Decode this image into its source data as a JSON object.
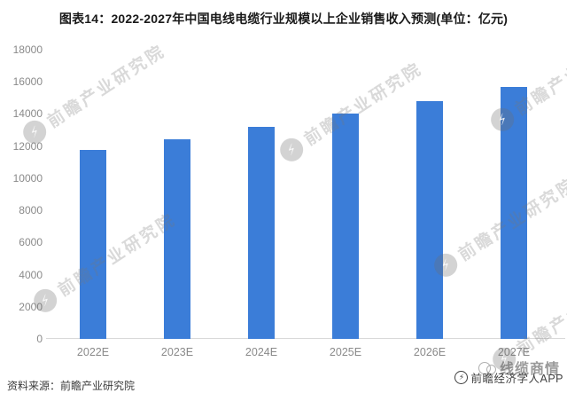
{
  "title": "图表14：2022-2027年中国电线电缆行业规模以上企业销售收入预测(单位：亿元)",
  "chart_data": {
    "type": "bar",
    "title": "2022-2027年中国电线电缆行业规模以上企业销售收入预测",
    "unit": "亿元",
    "categories": [
      "2022E",
      "2023E",
      "2024E",
      "2025E",
      "2026E",
      "2027E"
    ],
    "values": [
      11750,
      12400,
      13200,
      14000,
      14800,
      15700
    ],
    "xlabel": "",
    "ylabel": "",
    "ylim": [
      0,
      18000
    ],
    "yticks": [
      0,
      2000,
      4000,
      6000,
      8000,
      10000,
      12000,
      14000,
      16000,
      18000
    ],
    "grid": false,
    "legend": false,
    "bar_color": "#3B7DD8"
  },
  "watermark": {
    "text": "前瞻产业研究院",
    "logo_glyph": "⚡"
  },
  "footer": {
    "source_label": "资料来源：前瞻产业研究院",
    "brand_name": "线缆商情",
    "app_name": "前瞻经济学人APP",
    "app_logo_glyph": "⚡"
  },
  "colors": {
    "bar": "#3B7DD8",
    "axis_label": "#8A8A8A",
    "baseline": "#D9D9D9",
    "title_text": "#1A1A1A",
    "source_text": "#3A3A3A",
    "watermark_text": "#787878"
  }
}
